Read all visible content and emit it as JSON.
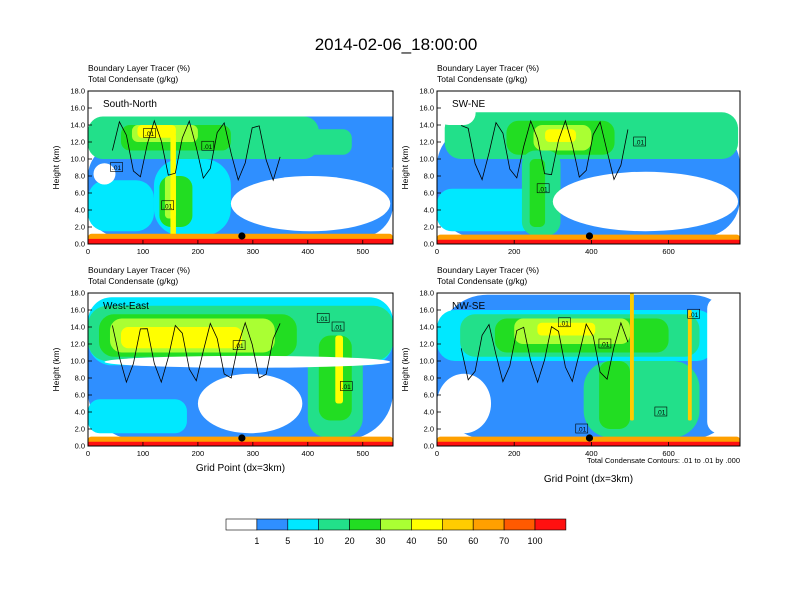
{
  "title": "2014-02-06_18:00:00",
  "x_axis_label": "Grid Point (dx=3km)",
  "y_axis_label": "Height (km)",
  "header_line1": "Boundary Layer Tracer   (%)",
  "header_line2": "Total Condensate   (g/kg)",
  "contour_info": "Total Condensate Contours: .01 to .01 by .000",
  "colors": {
    "c1": "#ffffff",
    "c2": "#2f8fff",
    "c3": "#00e8ff",
    "c4": "#22e08a",
    "c5": "#22dd22",
    "c6": "#aaff33",
    "c7": "#ffff00",
    "c8": "#ffcc00",
    "c9": "#ffa000",
    "c10": "#ff5a00",
    "c11": "#ff1010"
  },
  "colorbar": {
    "labels": [
      "1",
      "5",
      "10",
      "20",
      "30",
      "40",
      "50",
      "60",
      "70",
      "100"
    ],
    "colors": [
      "#ffffff",
      "#2f8fff",
      "#00e8ff",
      "#22e08a",
      "#22dd22",
      "#aaff33",
      "#ffff00",
      "#ffcc00",
      "#ffa000",
      "#ff5a00",
      "#ff1010"
    ]
  },
  "chart_data": [
    {
      "type": "heatmap",
      "title": "South-North",
      "xlabel": "",
      "ylabel": "Height (km)",
      "xlim": [
        0,
        555
      ],
      "ylim": [
        0,
        18
      ],
      "xticks": [
        "0",
        "100",
        "200",
        "300",
        "400",
        "500"
      ],
      "xtick_values": [
        0,
        100,
        200,
        300,
        400,
        500
      ],
      "yticks": [
        "0.0",
        "2.0",
        "4.0",
        "6.0",
        "8.0",
        "10.0",
        "12.0",
        "14.0",
        "16.0",
        "18.0"
      ],
      "marker_x": 280,
      "contour_labels": [
        {
          "text": ".01",
          "x": 112,
          "y": 13
        },
        {
          "text": ".01",
          "x": 218,
          "y": 11.5
        },
        {
          "text": ".01",
          "x": 52,
          "y": 9
        },
        {
          "text": ".01",
          "x": 145,
          "y": 4.5
        }
      ]
    },
    {
      "type": "heatmap",
      "title": "SW-NE",
      "xlabel": "",
      "ylabel": "Height (km)",
      "xlim": [
        0,
        785
      ],
      "ylim": [
        0,
        18
      ],
      "xticks": [
        "0",
        "200",
        "400",
        "600"
      ],
      "xtick_values": [
        0,
        200,
        400,
        600
      ],
      "yticks": [
        "0.0",
        "2.0",
        "4.0",
        "6.0",
        "8.0",
        "10.0",
        "12.0",
        "14.0",
        "16.0",
        "18.0"
      ],
      "marker_x": 395,
      "contour_labels": [
        {
          "text": ".01",
          "x": 525,
          "y": 12
        },
        {
          "text": ".01",
          "x": 275,
          "y": 6.5
        }
      ]
    },
    {
      "type": "heatmap",
      "title": "West-East",
      "xlabel": "Grid Point (dx=3km)",
      "ylabel": "Height (km)",
      "xlim": [
        0,
        555
      ],
      "ylim": [
        0,
        18
      ],
      "xticks": [
        "0",
        "100",
        "200",
        "300",
        "400",
        "500"
      ],
      "xtick_values": [
        0,
        100,
        200,
        300,
        400,
        500
      ],
      "yticks": [
        "0.0",
        "2.0",
        "4.0",
        "6.0",
        "8.0",
        "10.0",
        "12.0",
        "14.0",
        "16.0",
        "18.0"
      ],
      "marker_x": 280,
      "contour_labels": [
        {
          "text": ".01",
          "x": 428,
          "y": 15
        },
        {
          "text": ".01",
          "x": 455,
          "y": 14
        },
        {
          "text": ".01",
          "x": 275,
          "y": 11.8
        },
        {
          "text": ".01",
          "x": 470,
          "y": 7
        }
      ]
    },
    {
      "type": "heatmap",
      "title": "NW-SE",
      "xlabel": "Grid Point (dx=3km)",
      "ylabel": "Height (km)",
      "xlim": [
        0,
        785
      ],
      "ylim": [
        0,
        18
      ],
      "xticks": [
        "0",
        "200",
        "400",
        "600"
      ],
      "xtick_values": [
        0,
        200,
        400,
        600
      ],
      "yticks": [
        "0.0",
        "2.0",
        "4.0",
        "6.0",
        "8.0",
        "10.0",
        "12.0",
        "14.0",
        "16.0",
        "18.0"
      ],
      "marker_x": 395,
      "contour_labels": [
        {
          "text": ".01",
          "x": 665,
          "y": 15.5
        },
        {
          "text": ".01",
          "x": 330,
          "y": 14.5
        },
        {
          "text": ".01",
          "x": 435,
          "y": 12
        },
        {
          "text": ".01",
          "x": 375,
          "y": 2
        },
        {
          "text": ".01",
          "x": 580,
          "y": 4
        }
      ]
    }
  ]
}
